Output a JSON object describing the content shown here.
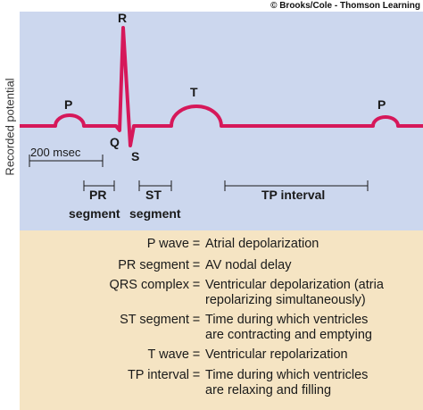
{
  "copyright": "© Brooks/Cole - Thomson Learning",
  "ylabel": "Recorded potential",
  "waves": {
    "p1": "P",
    "q": "Q",
    "r": "R",
    "s": "S",
    "t": "T",
    "p2": "P"
  },
  "scale_label": "200 msec",
  "intervals": {
    "pr": "PR",
    "st": "ST",
    "segment1": "segment",
    "segment2": "segment",
    "tp": "TP interval"
  },
  "colors": {
    "trace": "#d6185a",
    "plot_bg": "#ccd7ee",
    "legend_bg": "#f5e4c3"
  },
  "legend": [
    {
      "term": "P wave",
      "def": [
        "Atrial depolarization"
      ]
    },
    {
      "term": "PR segment",
      "def": [
        "AV nodal delay"
      ]
    },
    {
      "term": "QRS complex",
      "def": [
        "Ventricular depolarization (atria",
        "repolarizing simultaneously)"
      ]
    },
    {
      "term": "ST segment",
      "def": [
        "Time during which ventricles",
        "are contracting and emptying"
      ]
    },
    {
      "term": "T wave",
      "def": [
        "Ventricular repolarization"
      ]
    },
    {
      "term": "TP interval",
      "def": [
        "Time during which ventricles",
        "are relaxing and filling"
      ]
    }
  ]
}
